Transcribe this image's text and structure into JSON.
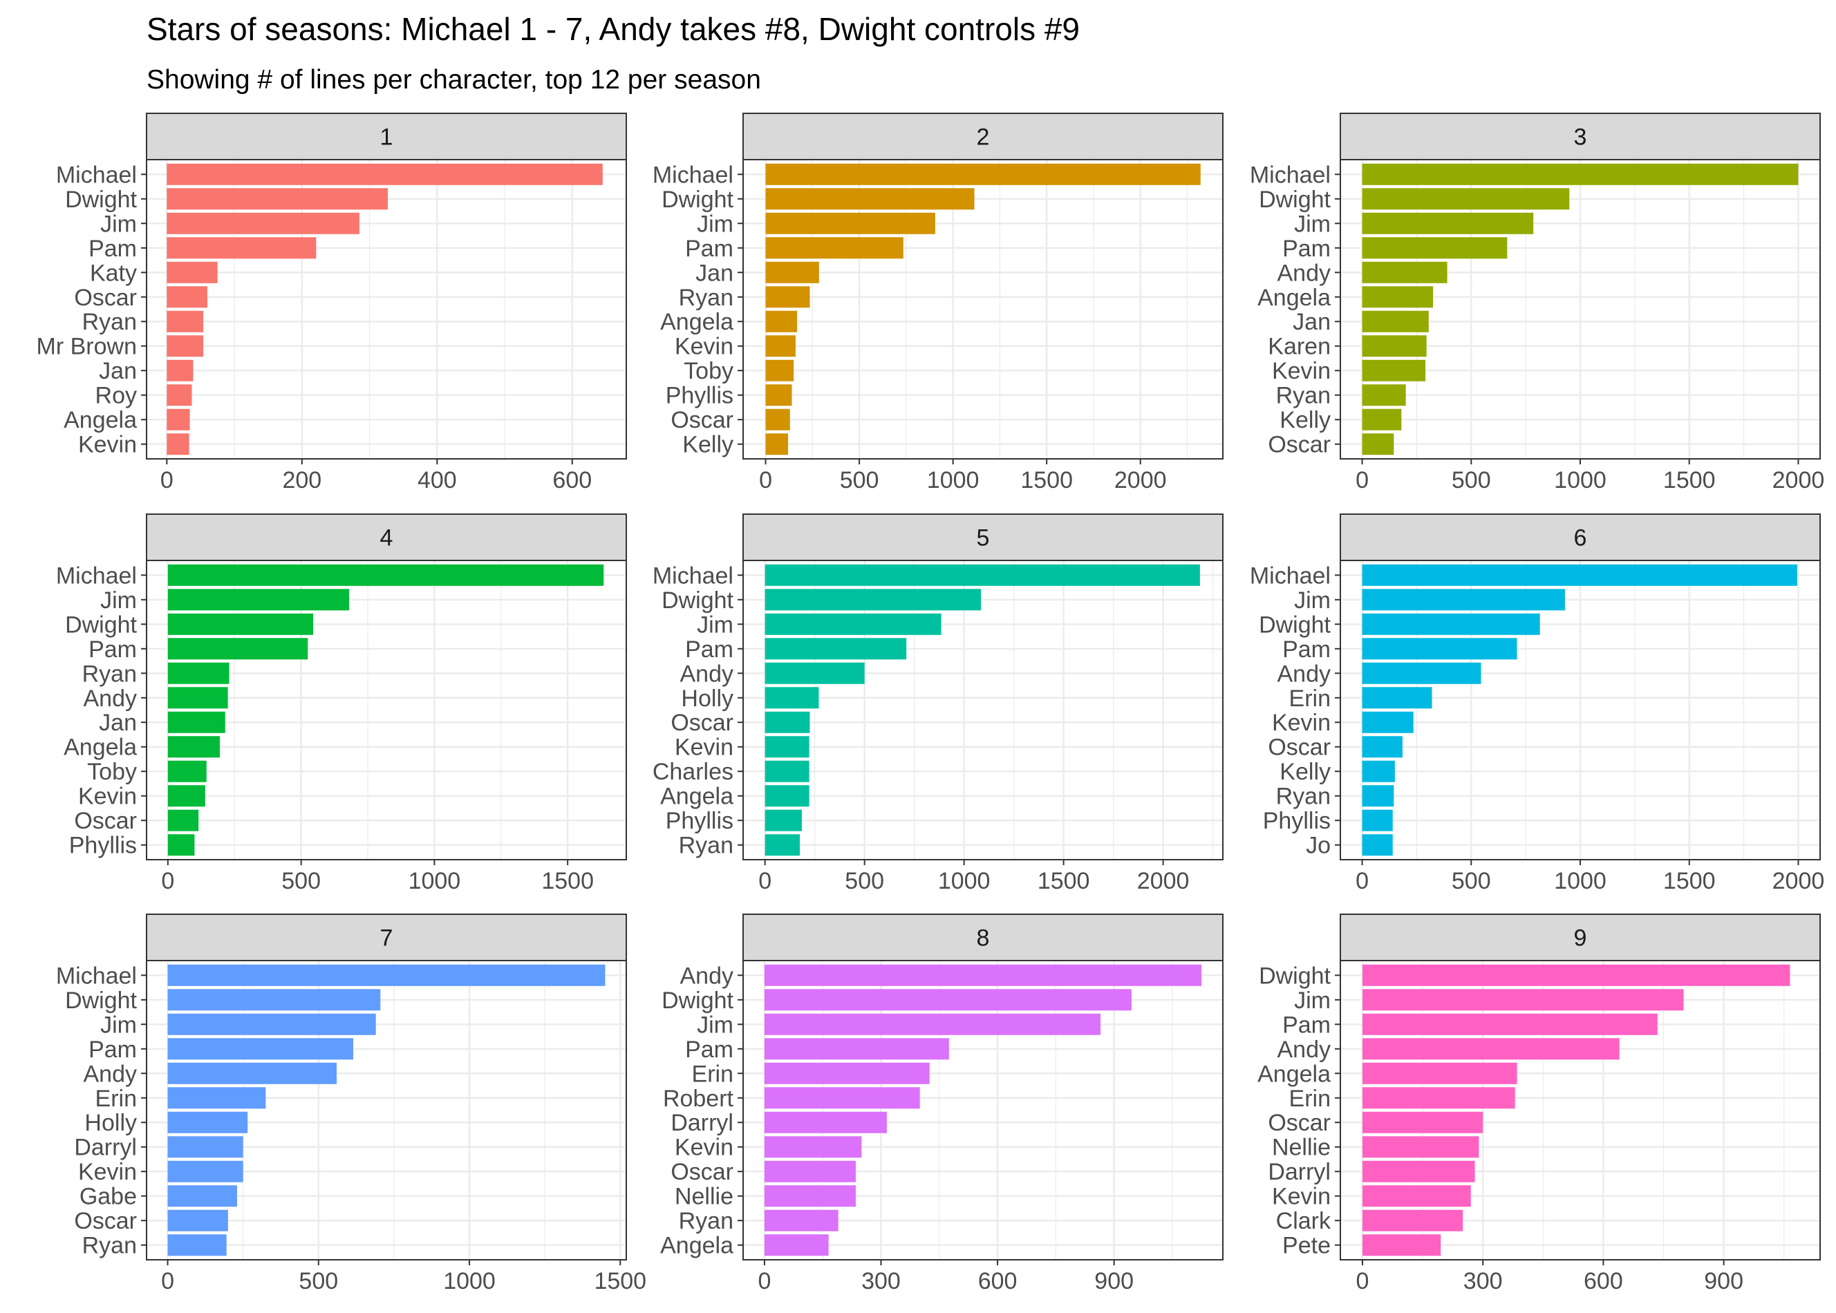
{
  "chart_data": {
    "title": "Stars of seasons: Michael 1 - 7, Andy takes #8, Dwight controls #9",
    "subtitle": "Showing # of lines per character, top 12 per season",
    "type": "bar",
    "orientation": "horizontal",
    "grid": true,
    "facets": [
      {
        "season": "1",
        "color": "#F8766D",
        "xlim": [
          -30,
          680
        ],
        "xticks": [
          0,
          200,
          400,
          600
        ],
        "categories": [
          "Michael",
          "Dwight",
          "Jim",
          "Pam",
          "Katy",
          "Oscar",
          "Ryan",
          "Mr  Brown",
          "Jan",
          "Roy",
          "Angela",
          "Kevin"
        ],
        "values": [
          645,
          327,
          285,
          221,
          75,
          60,
          54,
          54,
          39,
          37,
          34,
          33
        ]
      },
      {
        "season": "2",
        "color": "#D39200",
        "xlim": [
          -120,
          2440
        ],
        "xticks": [
          0,
          500,
          1000,
          1500,
          2000
        ],
        "categories": [
          "Michael",
          "Dwight",
          "Jim",
          "Pam",
          "Jan",
          "Ryan",
          "Angela",
          "Kevin",
          "Toby",
          "Phyllis",
          "Oscar",
          "Kelly"
        ],
        "values": [
          2321,
          1114,
          905,
          735,
          285,
          236,
          168,
          160,
          150,
          140,
          130,
          120
        ]
      },
      {
        "season": "3",
        "color": "#93AA00",
        "xlim": [
          -100,
          2100
        ],
        "xticks": [
          0,
          500,
          1000,
          1500,
          2000
        ],
        "categories": [
          "Michael",
          "Dwight",
          "Jim",
          "Pam",
          "Andy",
          "Angela",
          "Jan",
          "Karen",
          "Kevin",
          "Ryan",
          "Kelly",
          "Oscar"
        ],
        "values": [
          2000,
          950,
          785,
          665,
          390,
          325,
          305,
          295,
          290,
          200,
          180,
          145
        ]
      },
      {
        "season": "4",
        "color": "#00BA38",
        "xlim": [
          -80,
          1720
        ],
        "xticks": [
          0,
          500,
          1000,
          1500
        ],
        "categories": [
          "Michael",
          "Jim",
          "Dwight",
          "Pam",
          "Ryan",
          "Andy",
          "Jan",
          "Angela",
          "Toby",
          "Kevin",
          "Oscar",
          "Phyllis"
        ],
        "values": [
          1635,
          680,
          545,
          525,
          230,
          225,
          215,
          195,
          145,
          140,
          115,
          100
        ]
      },
      {
        "season": "5",
        "color": "#00C19F",
        "xlim": [
          -110,
          2300
        ],
        "xticks": [
          0,
          500,
          1000,
          1500,
          2000
        ],
        "categories": [
          "Michael",
          "Dwight",
          "Jim",
          "Pam",
          "Andy",
          "Holly",
          "Oscar",
          "Kevin",
          "Charles",
          "Angela",
          "Phyllis",
          "Ryan"
        ],
        "values": [
          2185,
          1085,
          885,
          710,
          500,
          270,
          225,
          222,
          222,
          222,
          185,
          175
        ]
      },
      {
        "season": "6",
        "color": "#00B9E3",
        "xlim": [
          -100,
          2100
        ],
        "xticks": [
          0,
          500,
          1000,
          1500,
          2000
        ],
        "categories": [
          "Michael",
          "Jim",
          "Dwight",
          "Pam",
          "Andy",
          "Erin",
          "Kevin",
          "Oscar",
          "Kelly",
          "Ryan",
          "Phyllis",
          "Jo"
        ],
        "values": [
          1995,
          930,
          815,
          710,
          545,
          320,
          235,
          185,
          150,
          145,
          140,
          140
        ]
      },
      {
        "season": "7",
        "color": "#619CFF",
        "xlim": [
          -70,
          1520
        ],
        "xticks": [
          0,
          500,
          1000,
          1500
        ],
        "categories": [
          "Michael",
          "Dwight",
          "Jim",
          "Pam",
          "Andy",
          "Erin",
          "Holly",
          "Darryl",
          "Kevin",
          "Gabe",
          "Oscar",
          "Ryan"
        ],
        "values": [
          1450,
          705,
          690,
          615,
          560,
          325,
          265,
          250,
          250,
          230,
          200,
          195
        ]
      },
      {
        "season": "8",
        "color": "#DB72FB",
        "xlim": [
          -55,
          1180
        ],
        "xticks": [
          0,
          300,
          600,
          900
        ],
        "categories": [
          "Andy",
          "Dwight",
          "Jim",
          "Pam",
          "Erin",
          "Robert",
          "Darryl",
          "Kevin",
          "Oscar",
          "Nellie",
          "Ryan",
          "Angela"
        ],
        "values": [
          1125,
          945,
          865,
          475,
          425,
          400,
          315,
          250,
          235,
          235,
          190,
          165
        ]
      },
      {
        "season": "9",
        "color": "#FF61C3",
        "xlim": [
          -55,
          1140
        ],
        "xticks": [
          0,
          300,
          600,
          900
        ],
        "categories": [
          "Dwight",
          "Jim",
          "Pam",
          "Andy",
          "Angela",
          "Erin",
          "Oscar",
          "Nellie",
          "Darryl",
          "Kevin",
          "Clark",
          "Pete"
        ],
        "values": [
          1065,
          800,
          735,
          640,
          385,
          380,
          300,
          290,
          280,
          270,
          250,
          195
        ]
      }
    ]
  }
}
